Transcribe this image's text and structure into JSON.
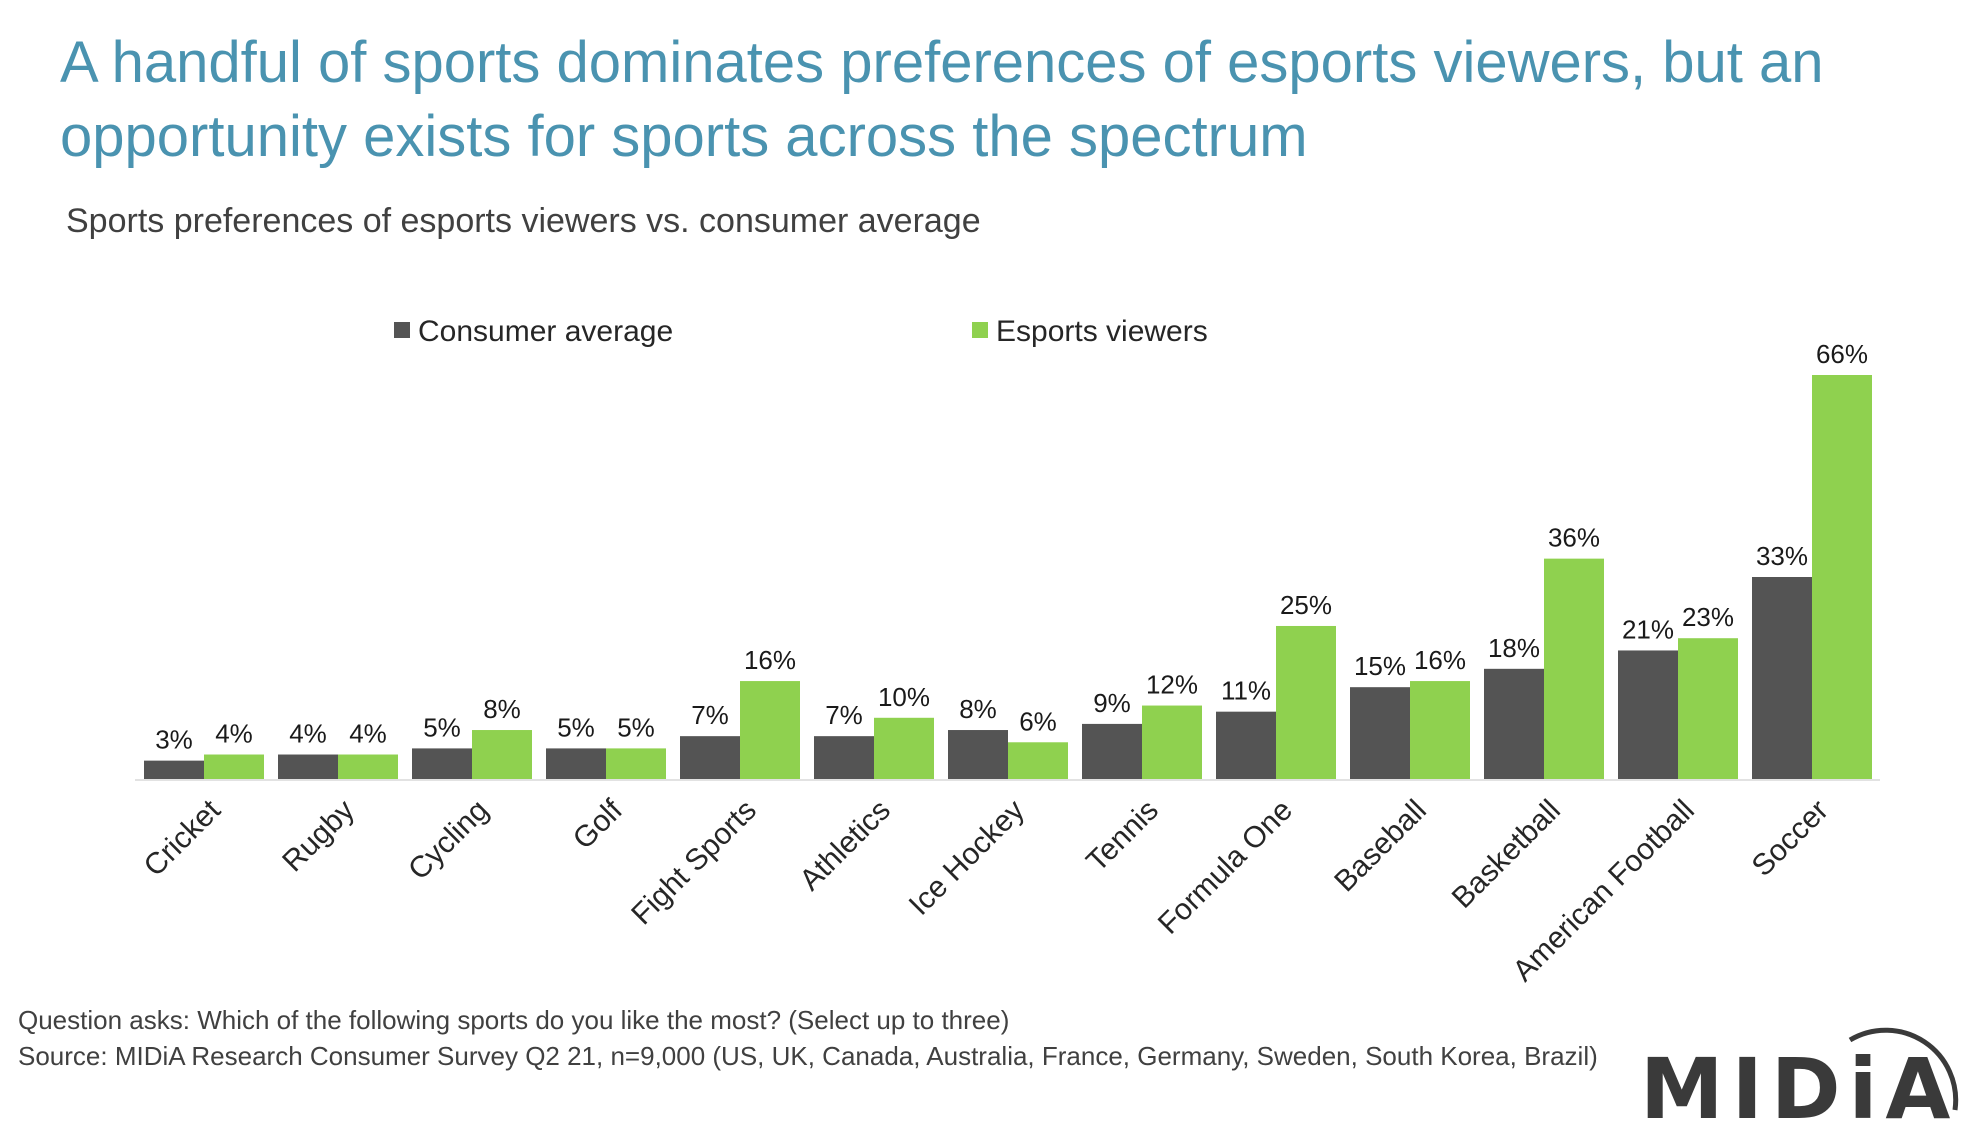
{
  "title": "A handful of sports dominates preferences of esports viewers, but an opportunity exists for sports across the spectrum",
  "subtitle": "Sports preferences of esports viewers vs. consumer average",
  "footnote": {
    "question": "Question asks: Which of the following sports do you like the most? (Select up to three)",
    "source": "Source: MIDiA Research Consumer Survey  Q2 21, n=9,000 (US, UK, Canada, Australia, France, Germany, Sweden, South Korea, Brazil)"
  },
  "logo": "MIDiA",
  "colors": {
    "title": "#4a93b0",
    "consumer": "#545454",
    "esports": "#8fd14f"
  },
  "chart_data": {
    "type": "bar",
    "categories": [
      "Cricket",
      "Rugby",
      "Cycling",
      "Golf",
      "Fight Sports",
      "Athletics",
      "Ice Hockey",
      "Tennis",
      "Formula One",
      "Baseball",
      "Basketball",
      "American Football",
      "Soccer"
    ],
    "series": [
      {
        "name": "Consumer average",
        "values": [
          3,
          4,
          5,
          5,
          7,
          7,
          8,
          9,
          11,
          15,
          18,
          21,
          33
        ],
        "labels": [
          "3%",
          "4%",
          "5%",
          "5%",
          "7%",
          "7%",
          "8%",
          "9%",
          "11%",
          "15%",
          "18%",
          "21%",
          "33%"
        ],
        "color": "#545454"
      },
      {
        "name": "Esports viewers",
        "values": [
          4,
          4,
          8,
          5,
          16,
          10,
          6,
          12,
          25,
          16,
          36,
          23,
          66
        ],
        "labels": [
          "4%",
          "4%",
          "8%",
          "5%",
          "16%",
          "10%",
          "6%",
          "12%",
          "25%",
          "16%",
          "36%",
          "23%",
          "66%"
        ],
        "color": "#8fd14f"
      }
    ],
    "ylim": [
      0,
      66
    ],
    "legend_position": "top",
    "grid": false
  }
}
